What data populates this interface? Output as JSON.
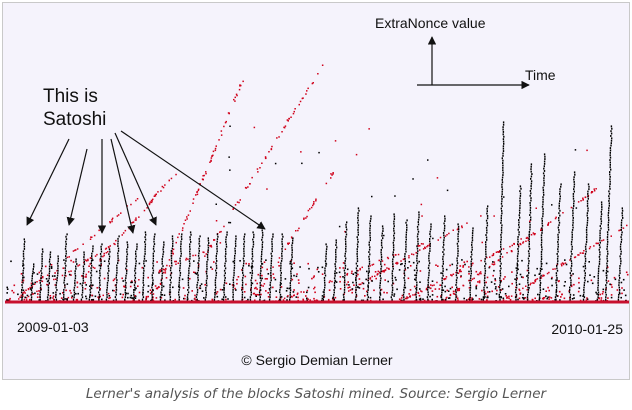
{
  "chart_data": {
    "type": "scatter",
    "title": "",
    "xlabel": "",
    "ylabel": "",
    "x_start_label": "2009-01-03",
    "x_end_label": "2010-01-25",
    "xlim": [
      "2009-01-03",
      "2010-01-25"
    ],
    "axis_key": {
      "y_label": "ExtraNonce value",
      "x_label": "Time"
    },
    "annotation": "This is\nSatoshi",
    "annotation_arrow_count": 6,
    "credit": "© Sergio Demian Lerner",
    "grid": false,
    "legend": "none",
    "series": [
      {
        "marks": "black streaks",
        "color": "#000000"
      },
      {
        "marks": "red points",
        "color": "#d0021b"
      }
    ]
  },
  "caption": "Lerner's analysis of the blocks Satoshi mined. Source: Sergio Lerner"
}
